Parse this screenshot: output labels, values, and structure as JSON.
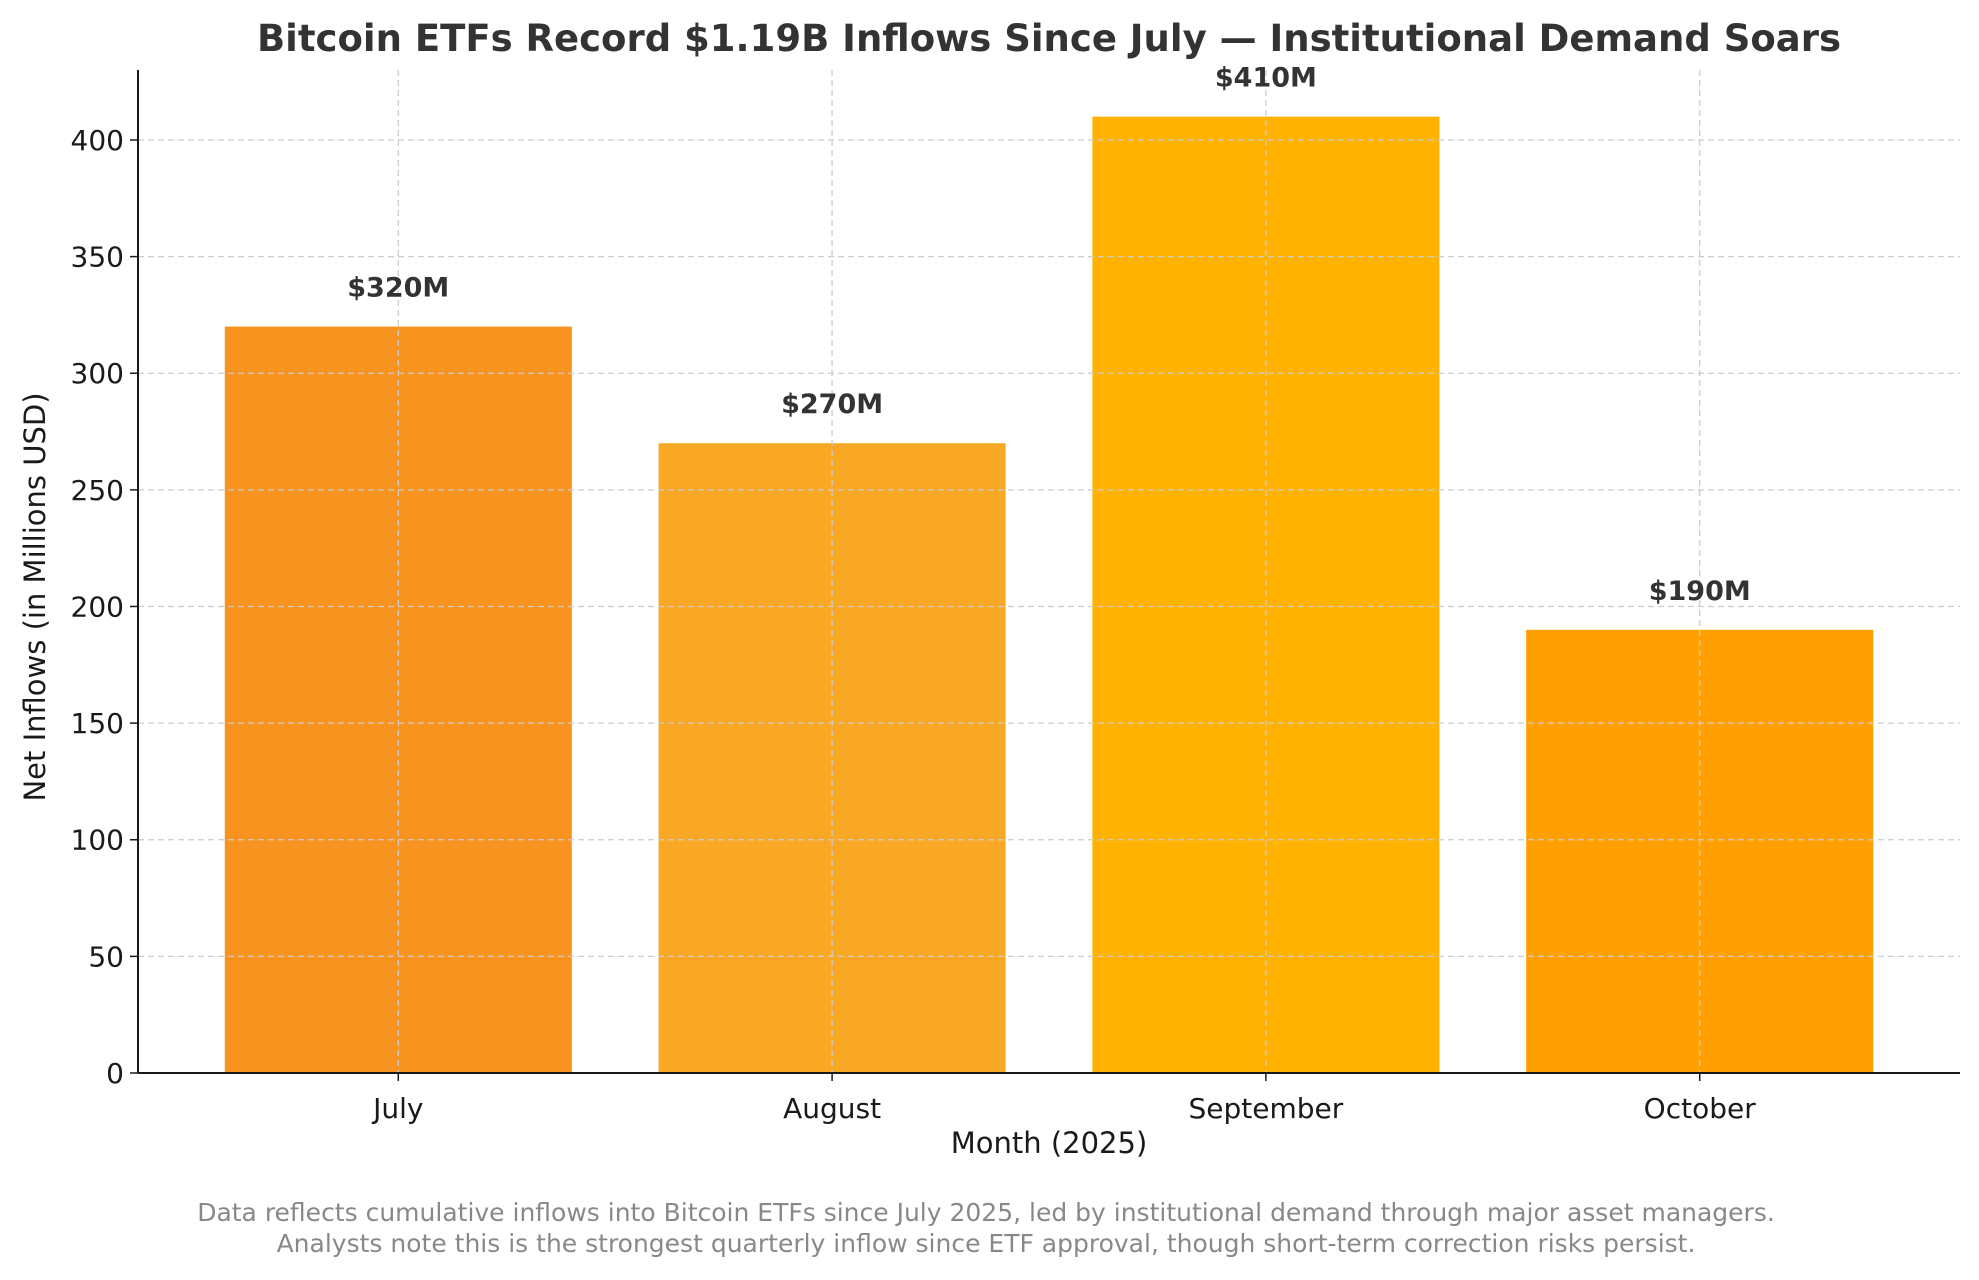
{
  "chart_data": {
    "type": "bar",
    "title": "Bitcoin ETFs Record $1.19B Inflows Since July — Institutional Demand Soars",
    "xlabel": "Month (2025)",
    "ylabel": "Net Inflows (in Millions USD)",
    "categories": [
      "July",
      "August",
      "September",
      "October"
    ],
    "values": [
      320,
      270,
      410,
      190
    ],
    "data_labels": [
      "$320M",
      "$270M",
      "$410M",
      "$190M"
    ],
    "colors": [
      "#F7931E",
      "#F9A825",
      "#FFB300",
      "#FFA000"
    ],
    "ylim": [
      0,
      430
    ],
    "yticks": [
      0,
      50,
      100,
      150,
      200,
      250,
      300,
      350,
      400
    ],
    "grid": true,
    "footnote": [
      "Data reflects cumulative inflows into Bitcoin ETFs since July 2025, led by institutional demand through major asset managers.",
      "Analysts note this is the strongest quarterly inflow since ETF approval, though short-term correction risks persist."
    ]
  }
}
